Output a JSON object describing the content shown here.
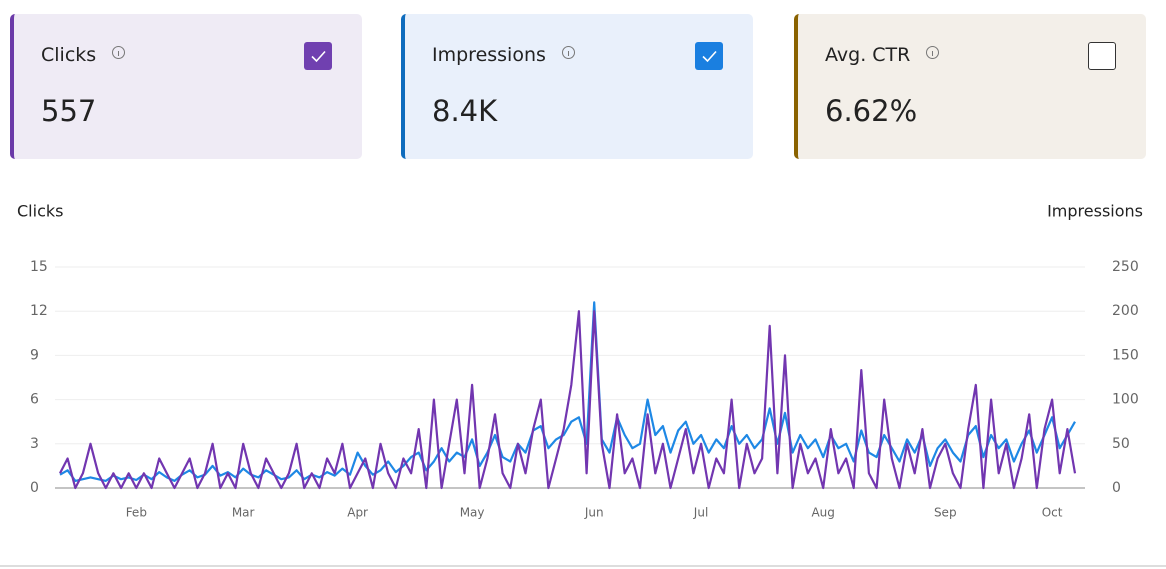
{
  "cards": [
    {
      "label": "Clicks",
      "value": "557",
      "checked": true,
      "accent": "#6b3aa8",
      "background": "#efebf5",
      "checkbox": "#7040b0"
    },
    {
      "label": "Impressions",
      "value": "8.4K",
      "checked": true,
      "accent": "#0f6cbd",
      "background": "#e9f0fb",
      "checkbox": "#1a7fe0"
    },
    {
      "label": "Avg. CTR",
      "value": "6.62%",
      "checked": false,
      "accent": "#8a6200",
      "background": "#f3efe9",
      "checkbox": "#333333"
    }
  ],
  "chart_data": {
    "type": "line",
    "ylabel": "Clicks",
    "y2label": "Impressions",
    "categories": [
      null,
      null,
      null,
      null,
      null,
      null,
      null,
      null,
      null,
      null,
      "Feb",
      null,
      null,
      null,
      null,
      null,
      null,
      null,
      null,
      null,
      null,
      null,
      null,
      null,
      "Mar",
      null,
      null,
      null,
      null,
      null,
      null,
      null,
      null,
      null,
      null,
      null,
      null,
      null,
      null,
      "Apr",
      null,
      null,
      null,
      null,
      null,
      null,
      null,
      null,
      null,
      null,
      null,
      null,
      null,
      null,
      "May",
      null,
      null,
      null,
      null,
      null,
      null,
      null,
      null,
      null,
      null,
      null,
      null,
      null,
      null,
      null,
      "Jun",
      null,
      null,
      null,
      null,
      null,
      null,
      null,
      null,
      null,
      null,
      null,
      null,
      null,
      "Jul",
      null,
      null,
      null,
      null,
      null,
      null,
      null,
      null,
      null,
      null,
      null,
      null,
      null,
      null,
      null,
      "Aug",
      null,
      null,
      null,
      null,
      null,
      null,
      null,
      null,
      null,
      null,
      null,
      null,
      null,
      null,
      null,
      "Sep",
      null,
      null,
      null,
      null,
      null,
      null,
      null,
      null,
      null,
      null,
      null,
      null,
      null,
      "Oct",
      null,
      null,
      null
    ],
    "ylim": [
      0,
      15
    ],
    "yticks": [
      0,
      3,
      6,
      9,
      12,
      15
    ],
    "y2lim": [
      0,
      250
    ],
    "y2ticks": [
      0,
      50,
      100,
      150,
      200,
      250
    ],
    "grid": true,
    "series": [
      {
        "name": "Impressions",
        "color": "#1e88e5",
        "axis": "y2",
        "values": [
          15,
          20,
          8,
          10,
          12,
          10,
          8,
          14,
          10,
          12,
          9,
          15,
          10,
          18,
          12,
          8,
          15,
          20,
          12,
          15,
          25,
          14,
          18,
          12,
          22,
          15,
          12,
          20,
          15,
          10,
          12,
          20,
          10,
          15,
          12,
          18,
          14,
          22,
          15,
          40,
          25,
          15,
          20,
          30,
          18,
          25,
          35,
          40,
          20,
          30,
          45,
          30,
          40,
          35,
          55,
          25,
          40,
          60,
          35,
          30,
          50,
          40,
          65,
          70,
          45,
          55,
          60,
          75,
          80,
          50,
          210,
          55,
          40,
          80,
          60,
          45,
          50,
          100,
          60,
          70,
          40,
          65,
          75,
          50,
          60,
          40,
          55,
          45,
          70,
          50,
          60,
          45,
          55,
          90,
          50,
          85,
          40,
          60,
          45,
          55,
          35,
          60,
          45,
          50,
          30,
          65,
          40,
          35,
          60,
          45,
          30,
          55,
          40,
          60,
          25,
          45,
          55,
          40,
          30,
          60,
          70,
          35,
          60,
          45,
          55,
          30,
          50,
          65,
          40,
          60,
          80,
          45,
          60,
          75
        ]
      },
      {
        "name": "Clicks",
        "color": "#7236b0",
        "axis": "y",
        "values": [
          1,
          2,
          0,
          1,
          3,
          1,
          0,
          1,
          0,
          1,
          0,
          1,
          0,
          2,
          1,
          0,
          1,
          2,
          0,
          1,
          3,
          0,
          1,
          0,
          3,
          1,
          0,
          2,
          1,
          0,
          1,
          3,
          0,
          1,
          0,
          2,
          1,
          3,
          0,
          1,
          2,
          0,
          3,
          1,
          0,
          2,
          1,
          4,
          0,
          6,
          0,
          3,
          6,
          1,
          7,
          0,
          2,
          5,
          1,
          0,
          3,
          1,
          4,
          6,
          0,
          2,
          4,
          7,
          12,
          1,
          12,
          3,
          0,
          5,
          1,
          2,
          0,
          5,
          1,
          3,
          0,
          2,
          4,
          1,
          3,
          0,
          2,
          1,
          6,
          0,
          3,
          1,
          2,
          11,
          1,
          9,
          0,
          3,
          1,
          2,
          0,
          4,
          1,
          2,
          0,
          8,
          1,
          0,
          6,
          2,
          0,
          3,
          1,
          4,
          0,
          2,
          3,
          1,
          0,
          4,
          7,
          0,
          6,
          1,
          3,
          0,
          2,
          5,
          0,
          4,
          6,
          1,
          4,
          1
        ]
      }
    ]
  }
}
